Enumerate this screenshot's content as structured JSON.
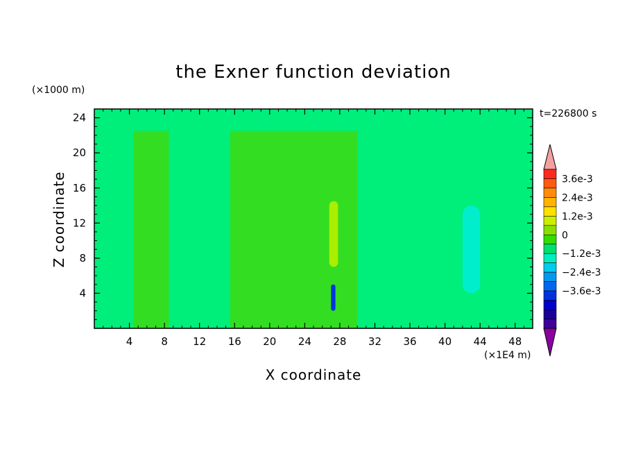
{
  "chart_data": {
    "type": "heatmap",
    "title": "the Exner function deviation",
    "xlabel": "X coordinate",
    "ylabel": "Z coordinate",
    "x_unit": "(×1E4 m)",
    "y_unit": "(×1000 m)",
    "time_label": "t=226800 s",
    "xlim": [
      0,
      50
    ],
    "ylim": [
      0,
      25
    ],
    "x_ticks": [
      4,
      8,
      12,
      16,
      20,
      24,
      28,
      32,
      36,
      40,
      44,
      48
    ],
    "y_ticks": [
      4,
      8,
      12,
      16,
      20,
      24
    ],
    "x_tick_labels": [
      "4",
      "8",
      "12",
      "16",
      "20",
      "24",
      "28",
      "32",
      "36",
      "40",
      "44",
      "48"
    ],
    "y_tick_labels": [
      "4",
      "8",
      "12",
      "16",
      "20",
      "24"
    ],
    "colorbar": {
      "levels": [
        "3.6e-3",
        "2.4e-3",
        "1.2e-3",
        "0",
        "−1.2e-3",
        "−2.4e-3",
        "−3.6e-3"
      ],
      "colors_top_to_bottom": [
        "#ff2a1f",
        "#ff5a14",
        "#ff8c0a",
        "#ffb400",
        "#ffe000",
        "#ccee00",
        "#88e000",
        "#33dd00",
        "#00e070",
        "#00eec0",
        "#00ccee",
        "#0099ee",
        "#0066ee",
        "#0033dd",
        "#0000cc",
        "#1a0099",
        "#3d0099"
      ],
      "over_color": "#f4a0a0",
      "under_color": "#8a00a0"
    },
    "field_regions": [
      {
        "x": [
          0,
          50
        ],
        "z": [
          0,
          25
        ],
        "level": "0 to −0.6e-3",
        "color": "#00ee7a"
      },
      {
        "x": [
          4.5,
          8.5
        ],
        "z": [
          0,
          22.5
        ],
        "level": "0.6e-3 band",
        "color": "#33dd22"
      },
      {
        "x": [
          15.5,
          30
        ],
        "z": [
          0,
          22.5
        ],
        "level": "0.6e-3 band",
        "color": "#33dd22"
      },
      {
        "x": [
          26.8,
          27.8
        ],
        "z": [
          7,
          14.5
        ],
        "level": "1.2e-3 band",
        "color": "#aaee00"
      },
      {
        "x": [
          27.0,
          27.5
        ],
        "z": [
          2,
          5
        ],
        "level": "−3.6e-3 minimum",
        "color": "#0033dd"
      },
      {
        "x": [
          42,
          44
        ],
        "z": [
          4,
          14
        ],
        "level": "−0.6e-3 band",
        "color": "#00eecc"
      }
    ]
  }
}
